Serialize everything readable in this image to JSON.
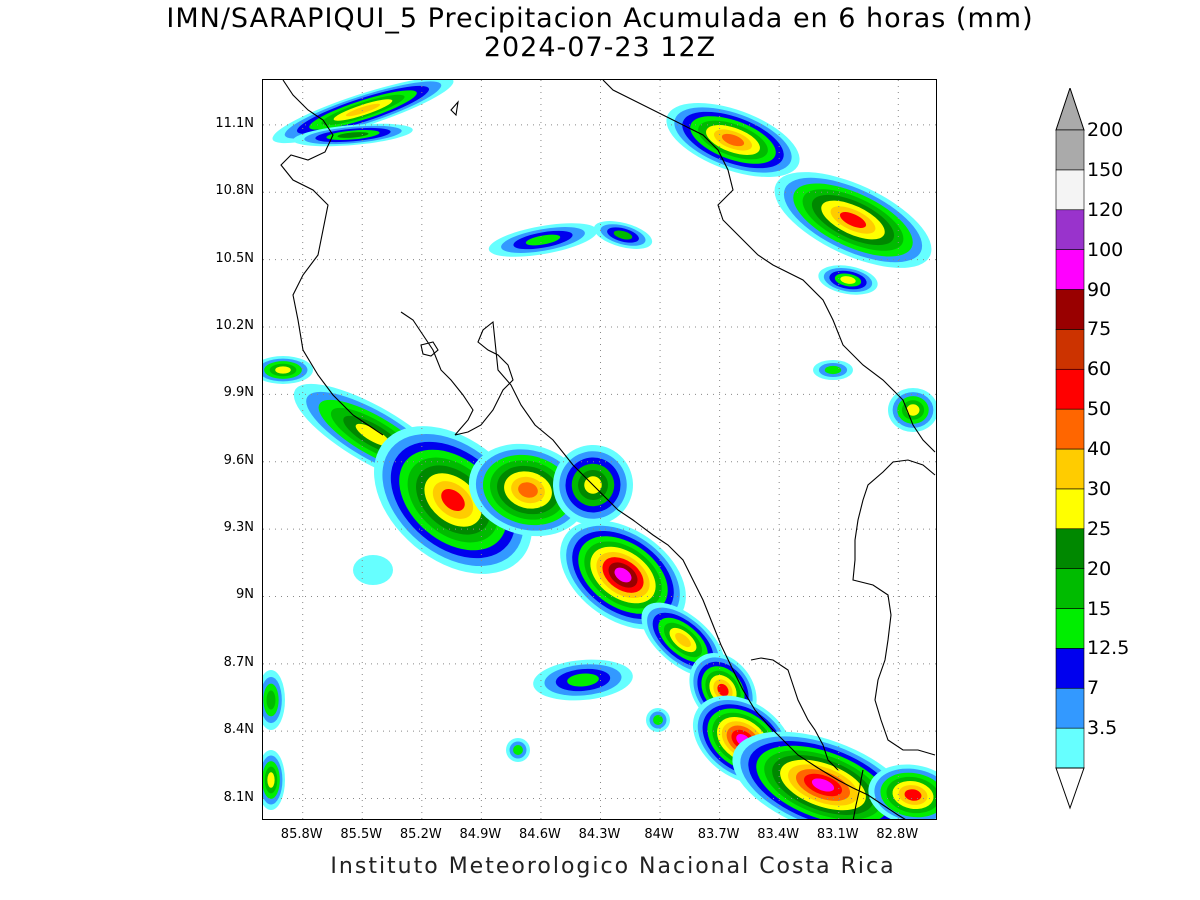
{
  "title": {
    "line1": "IMN/SARAPIQUI_5 Precipitacion Acumulada en 6 horas (mm)",
    "line2": "2024-07-23 12Z"
  },
  "credit": "Instituto Meteorologico Nacional Costa Rica",
  "map": {
    "lon_range": [
      -86.0,
      -82.6
    ],
    "lat_range": [
      8.0,
      11.3
    ],
    "y_ticks": [
      {
        "value": 11.1,
        "label": "11.1N"
      },
      {
        "value": 10.8,
        "label": "10.8N"
      },
      {
        "value": 10.5,
        "label": "10.5N"
      },
      {
        "value": 10.2,
        "label": "10.2N"
      },
      {
        "value": 9.9,
        "label": "9.9N"
      },
      {
        "value": 9.6,
        "label": "9.6N"
      },
      {
        "value": 9.3,
        "label": "9.3N"
      },
      {
        "value": 9.0,
        "label": "9N"
      },
      {
        "value": 8.7,
        "label": "8.7N"
      },
      {
        "value": 8.4,
        "label": "8.4N"
      },
      {
        "value": 8.1,
        "label": "8.1N"
      }
    ],
    "x_ticks": [
      {
        "value": -85.8,
        "label": "85.8W"
      },
      {
        "value": -85.5,
        "label": "85.5W"
      },
      {
        "value": -85.2,
        "label": "85.2W"
      },
      {
        "value": -84.9,
        "label": "84.9W"
      },
      {
        "value": -84.6,
        "label": "84.6W"
      },
      {
        "value": -84.3,
        "label": "84.3W"
      },
      {
        "value": -84.0,
        "label": "84W"
      },
      {
        "value": -83.7,
        "label": "83.7W"
      },
      {
        "value": -83.4,
        "label": "83.4W"
      },
      {
        "value": -83.1,
        "label": "83.1W"
      },
      {
        "value": -82.8,
        "label": "82.8W"
      }
    ],
    "grid": "dotted"
  },
  "colorbar": {
    "unit": "mm",
    "levels": [
      {
        "label": "3.5",
        "color": "#66ffff"
      },
      {
        "label": "7",
        "color": "#3399ff"
      },
      {
        "label": "12.5",
        "color": "#0000ee"
      },
      {
        "label": "15",
        "color": "#00ee00"
      },
      {
        "label": "20",
        "color": "#00bb00"
      },
      {
        "label": "25",
        "color": "#008800"
      },
      {
        "label": "30",
        "color": "#ffff00"
      },
      {
        "label": "40",
        "color": "#ffcc00"
      },
      {
        "label": "50",
        "color": "#ff6600"
      },
      {
        "label": "60",
        "color": "#ff0000"
      },
      {
        "label": "75",
        "color": "#cc3300"
      },
      {
        "label": "90",
        "color": "#990000"
      },
      {
        "label": "100",
        "color": "#ff00ff"
      },
      {
        "label": "120",
        "color": "#9933cc"
      },
      {
        "label": "150",
        "color": "#f4f4f4"
      },
      {
        "label": "200",
        "color": "#aaaaaa"
      }
    ],
    "top_arrow_color": "#aaaaaa",
    "bottom_arrow_color": "#ffffff"
  }
}
